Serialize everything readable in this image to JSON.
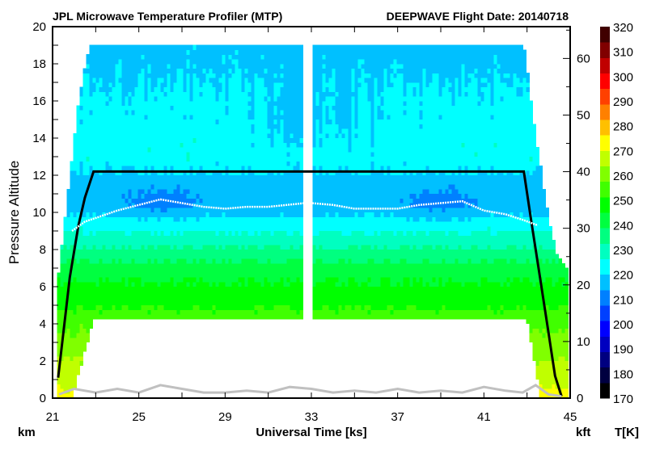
{
  "chart_data": {
    "type": "heatmap",
    "title": "JPL Microwave Temperature Profiler (MTP)",
    "subtitle": "DEEPWAVE  Flight Date: 20140718",
    "xlabel": "Universal Time [ks]",
    "ylabel": "Pressure Altitude",
    "ylabel_left_unit": "km",
    "ylabel_right_unit": "kft",
    "colorbar_label": "T[K]",
    "xlim": [
      21,
      45
    ],
    "ylim": [
      0,
      20
    ],
    "y2lim_kft": [
      0,
      65.6168
    ],
    "xticks": [
      21,
      25,
      29,
      33,
      37,
      41,
      45
    ],
    "yticks": [
      0,
      2,
      4,
      6,
      8,
      10,
      12,
      14,
      16,
      18,
      20
    ],
    "y2ticks": [
      0,
      10,
      20,
      30,
      40,
      50,
      60
    ],
    "colorbar": {
      "range": [
        170,
        320
      ],
      "ticks": [
        170,
        180,
        190,
        200,
        210,
        220,
        230,
        240,
        250,
        260,
        270,
        280,
        290,
        300,
        310,
        320
      ],
      "colors": [
        "#000000",
        "#000040",
        "#000080",
        "#0000c0",
        "#0000ff",
        "#0040ff",
        "#0080ff",
        "#00c0ff",
        "#00ffff",
        "#00ffc0",
        "#00ff80",
        "#00ff40",
        "#00ff00",
        "#40ff00",
        "#80ff00",
        "#c0ff00",
        "#ffff00",
        "#ffc000",
        "#ff8000",
        "#ff4000",
        "#ff0000",
        "#c00000",
        "#800000",
        "#400000"
      ]
    },
    "temperature_profile_km_K": [
      [
        0,
        272
      ],
      [
        1.5,
        266
      ],
      [
        3,
        260
      ],
      [
        4.2,
        255
      ],
      [
        5,
        250
      ],
      [
        6.5,
        244
      ],
      [
        7.5,
        238
      ],
      [
        8.3,
        231
      ],
      [
        9,
        226
      ],
      [
        9.8,
        220
      ],
      [
        10.5,
        216
      ],
      [
        11.5,
        216
      ],
      [
        12.3,
        221
      ],
      [
        13,
        224
      ],
      [
        16,
        222
      ],
      [
        17.5,
        219
      ],
      [
        19,
        217
      ]
    ],
    "cold_anomalies": [
      {
        "time": 26,
        "alt": 10.5,
        "dT": -6
      },
      {
        "time": 39,
        "alt": 10.5,
        "dT": -6
      },
      {
        "time": 32,
        "alt": 15,
        "dT": -5
      },
      {
        "time": 35,
        "alt": 15,
        "dT": -3
      }
    ],
    "coverage": {
      "start": 21.2,
      "end": 44.75,
      "max_alt": 19,
      "gap": [
        32.72,
        32.97
      ],
      "top_ascent": [
        [
          21.2,
          6
        ],
        [
          21.5,
          9
        ],
        [
          21.8,
          12
        ],
        [
          22.2,
          16
        ],
        [
          22.7,
          19
        ]
      ],
      "top_descent": [
        [
          42.85,
          19
        ],
        [
          43.3,
          15
        ],
        [
          43.8,
          11
        ],
        [
          44.3,
          8
        ],
        [
          44.75,
          7
        ]
      ],
      "floor_ascent": [
        [
          21.9,
          0
        ],
        [
          22.9,
          4.2
        ]
      ],
      "floor_descent": [
        [
          43.0,
          4.2
        ],
        [
          43.6,
          0
        ]
      ],
      "floor_alt": 4.2
    },
    "series": [
      {
        "name": "Aircraft altitude",
        "color": "#000000",
        "points": [
          [
            21.26,
            1.1
          ],
          [
            21.5,
            3.5
          ],
          [
            21.8,
            6.5
          ],
          [
            22.2,
            9.3
          ],
          [
            22.5,
            10.8
          ],
          [
            22.9,
            12.2
          ],
          [
            42.85,
            12.2
          ],
          [
            43.2,
            9.5
          ],
          [
            43.6,
            6.5
          ],
          [
            44.0,
            3.5
          ],
          [
            44.3,
            1.2
          ],
          [
            44.6,
            0.1
          ]
        ]
      },
      {
        "name": "Tropopause",
        "color": "#ffffff",
        "points": [
          [
            21.9,
            9.0
          ],
          [
            22.5,
            9.5
          ],
          [
            24,
            10.1
          ],
          [
            25,
            10.4
          ],
          [
            26,
            10.7
          ],
          [
            27,
            10.5
          ],
          [
            28,
            10.3
          ],
          [
            29,
            10.2
          ],
          [
            30,
            10.3
          ],
          [
            31,
            10.3
          ],
          [
            32.7,
            10.5
          ],
          [
            33,
            10.5
          ],
          [
            34,
            10.4
          ],
          [
            35,
            10.2
          ],
          [
            36,
            10.2
          ],
          [
            37,
            10.2
          ],
          [
            38,
            10.4
          ],
          [
            39,
            10.5
          ],
          [
            40,
            10.6
          ],
          [
            41,
            10.1
          ],
          [
            42,
            9.9
          ],
          [
            42.8,
            9.6
          ],
          [
            43.5,
            9.3
          ]
        ]
      },
      {
        "name": "Terrain",
        "color": "#c0c0c0",
        "points": [
          [
            21.3,
            0.2
          ],
          [
            22,
            0.5
          ],
          [
            23,
            0.3
          ],
          [
            24,
            0.5
          ],
          [
            25,
            0.3
          ],
          [
            26,
            0.7
          ],
          [
            27,
            0.5
          ],
          [
            28,
            0.3
          ],
          [
            29,
            0.3
          ],
          [
            30,
            0.4
          ],
          [
            31,
            0.3
          ],
          [
            32,
            0.6
          ],
          [
            33,
            0.5
          ],
          [
            34,
            0.3
          ],
          [
            35,
            0.4
          ],
          [
            36,
            0.3
          ],
          [
            37,
            0.5
          ],
          [
            38,
            0.3
          ],
          [
            39,
            0.4
          ],
          [
            40,
            0.3
          ],
          [
            41,
            0.6
          ],
          [
            42,
            0.4
          ],
          [
            42.8,
            0.3
          ],
          [
            43.4,
            0.7
          ],
          [
            44,
            0.2
          ],
          [
            44.6,
            0.1
          ]
        ]
      }
    ]
  }
}
